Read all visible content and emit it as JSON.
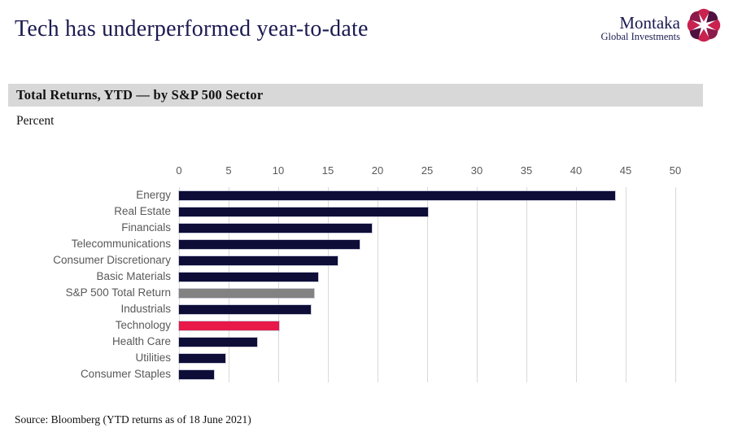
{
  "header": {
    "title": "Tech has underperformed year-to-date",
    "logo": {
      "name": "Montaka",
      "tagline": "Global Investments"
    }
  },
  "section": {
    "heading": "Total Returns, YTD — by S&P 500 Sector",
    "unit_label": "Percent"
  },
  "source": "Source: Bloomberg (YTD returns as of 18 June 2021)",
  "colors": {
    "title_navy": "#1b1b52",
    "band_gray": "#d8d8d8",
    "bar_navy": "#0d0d38",
    "bar_benchmark_gray": "#828282",
    "bar_highlight_red": "#e81948",
    "label_gray": "#595959",
    "gridline_gray": "#d9d9d9"
  },
  "chart_data": {
    "type": "bar",
    "orientation": "horizontal",
    "title": "Total Returns, YTD — by S&P 500 Sector",
    "xlabel": "Percent",
    "xlim": [
      0,
      50
    ],
    "xticks": [
      0,
      5,
      10,
      15,
      20,
      25,
      30,
      35,
      40,
      45,
      50
    ],
    "grid": true,
    "legend": "none",
    "highlight_category": "Technology",
    "benchmark_category": "S&P 500 Total Return",
    "categories": [
      "Energy",
      "Real Estate",
      "Financials",
      "Telecommunications",
      "Consumer Discretionary",
      "Basic Materials",
      "S&P 500 Total Return",
      "Industrials",
      "Technology",
      "Health Care",
      "Utilities",
      "Consumer Staples"
    ],
    "values": [
      43.9,
      25.1,
      19.4,
      18.2,
      16.0,
      14.0,
      13.6,
      13.3,
      10.1,
      7.9,
      4.7,
      3.5
    ],
    "bar_colors": [
      "#0d0d38",
      "#0d0d38",
      "#0d0d38",
      "#0d0d38",
      "#0d0d38",
      "#0d0d38",
      "#828282",
      "#0d0d38",
      "#e81948",
      "#0d0d38",
      "#0d0d38",
      "#0d0d38"
    ]
  },
  "logo_mark": {
    "petal_colors": [
      "#c9224f",
      "#4f1140",
      "#c9224f",
      "#8c1a4a",
      "#c9224f",
      "#4f1140",
      "#c9224f",
      "#8c1a4a"
    ]
  }
}
